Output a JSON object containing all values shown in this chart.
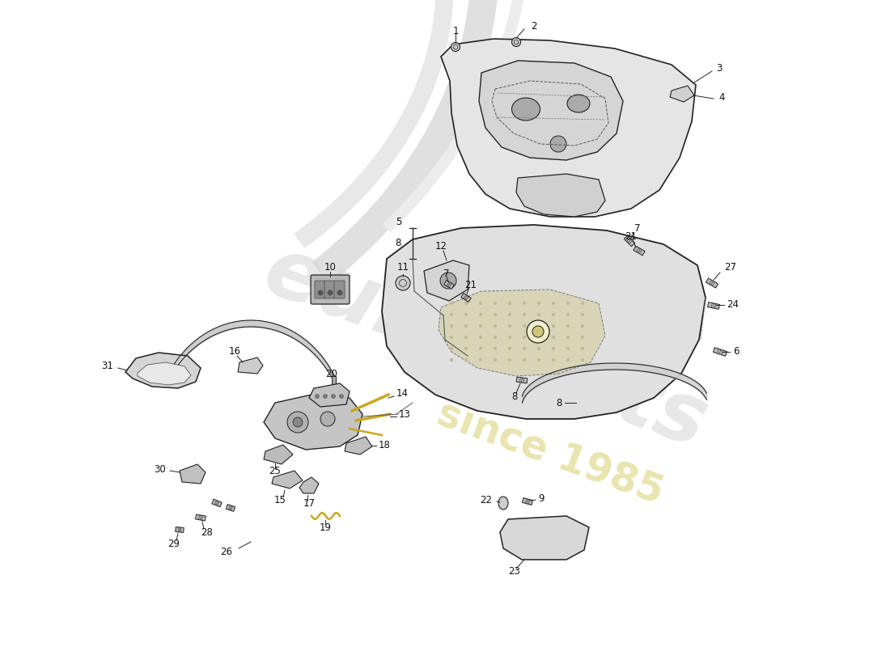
{
  "bg_color": "#ffffff",
  "line_color": "#222222",
  "fill_light": "#e8e8e8",
  "fill_medium": "#cccccc",
  "fill_dark": "#aaaaaa",
  "label_color": "#111111",
  "wire_color": "#c8a820",
  "watermark_color": "#d5d5d5",
  "watermark_year_color": "#d8d070",
  "swoosh_color1": "#e0e0e0",
  "swoosh_color2": "#e8e8e8",
  "fs": 8.5
}
